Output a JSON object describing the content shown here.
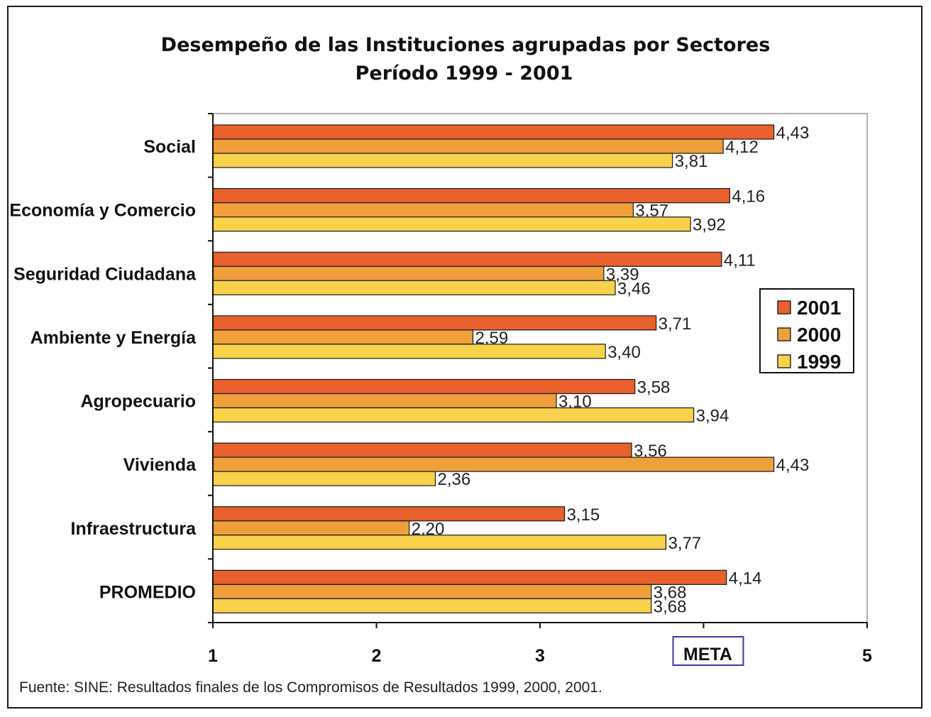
{
  "chart_data": {
    "type": "bar",
    "orientation": "horizontal",
    "title": "Desempeño de las Instituciones agrupadas por Sectores",
    "subtitle": "Período 1999 - 2001",
    "categories": [
      "Social",
      "Economía y Comercio",
      "Seguridad Ciudadana",
      "Ambiente y Energía",
      "Agropecuario",
      "Vivienda",
      "Infraestructura",
      "PROMEDIO"
    ],
    "series": [
      {
        "name": "2001",
        "color": "#e8602c",
        "values": [
          4.43,
          4.16,
          4.11,
          3.71,
          3.58,
          3.56,
          3.15,
          4.14
        ]
      },
      {
        "name": "2000",
        "color": "#f0a03a",
        "values": [
          4.12,
          3.57,
          3.39,
          2.59,
          3.1,
          4.43,
          2.2,
          3.68
        ]
      },
      {
        "name": "1999",
        "color": "#f7d24a",
        "values": [
          3.81,
          3.92,
          3.46,
          3.4,
          3.94,
          2.36,
          3.77,
          3.68
        ]
      }
    ],
    "data_labels": [
      [
        "4,43",
        "4,16",
        "4,11",
        "3,71",
        "3,58",
        "3,56",
        "3,15",
        "4,14"
      ],
      [
        "4,12",
        "3,57",
        "3,39",
        "2,59",
        "3,10",
        "4,43",
        "2,20",
        "3,68"
      ],
      [
        "3,81",
        "3,92",
        "3,46",
        "3,40",
        "3,94",
        "2,36",
        "3,77",
        "3,68"
      ]
    ],
    "x_ticks": [
      1,
      2,
      3,
      4,
      5
    ],
    "x_tick_labels": [
      "1",
      "2",
      "3",
      "META",
      "5"
    ],
    "highlighted_tick": "META",
    "xlim": [
      1,
      5
    ],
    "grid": false,
    "legend_position": "right",
    "legend_order": [
      "2001",
      "2000",
      "1999"
    ],
    "bar_outline_color": "#1a1a1a"
  },
  "footnote": "Fuente: SINE: Resultados finales de los Compromisos de Resultados 1999, 2000, 2001."
}
